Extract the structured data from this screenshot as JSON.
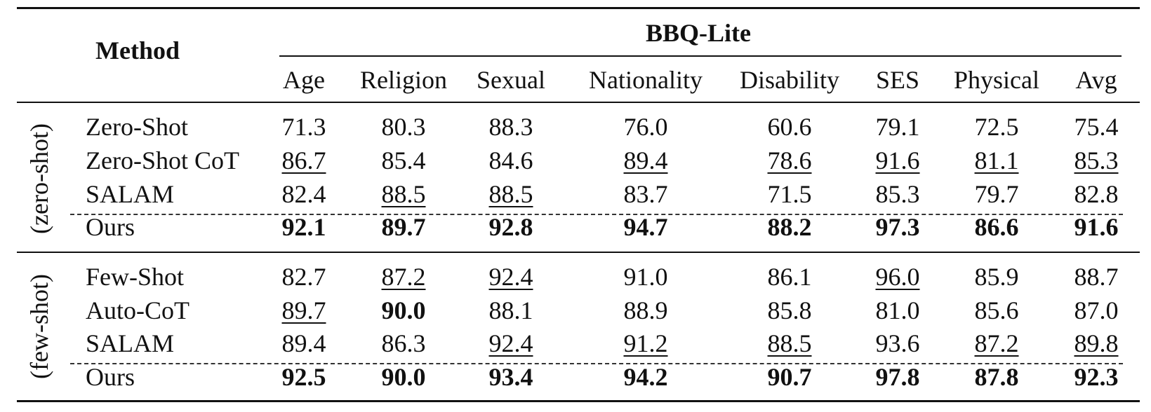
{
  "header": {
    "method_label": "Method",
    "group_label": "BBQ-Lite",
    "columns": [
      "Age",
      "Religion",
      "Sexual",
      "Nationality",
      "Disability",
      "SES",
      "Physical",
      "Avg"
    ]
  },
  "sections": [
    {
      "label": "(zero-shot)",
      "rows": [
        {
          "method": "Zero-Shot",
          "values": [
            "71.3",
            "80.3",
            "88.3",
            "76.0",
            "60.6",
            "79.1",
            "72.5",
            "75.4"
          ],
          "bold": [
            false,
            false,
            false,
            false,
            false,
            false,
            false,
            false
          ],
          "underline": [
            false,
            false,
            false,
            false,
            false,
            false,
            false,
            false
          ]
        },
        {
          "method": "Zero-Shot CoT",
          "values": [
            "86.7",
            "85.4",
            "84.6",
            "89.4",
            "78.6",
            "91.6",
            "81.1",
            "85.3"
          ],
          "bold": [
            false,
            false,
            false,
            false,
            false,
            false,
            false,
            false
          ],
          "underline": [
            true,
            false,
            false,
            true,
            true,
            true,
            true,
            true
          ]
        },
        {
          "method": "SALAM",
          "values": [
            "82.4",
            "88.5",
            "88.5",
            "83.7",
            "71.5",
            "85.3",
            "79.7",
            "82.8"
          ],
          "bold": [
            false,
            false,
            false,
            false,
            false,
            false,
            false,
            false
          ],
          "underline": [
            false,
            true,
            true,
            false,
            false,
            false,
            false,
            false
          ]
        },
        {
          "method": "Ours",
          "values": [
            "92.1",
            "89.7",
            "92.8",
            "94.7",
            "88.2",
            "97.3",
            "86.6",
            "91.6"
          ],
          "bold": [
            true,
            true,
            true,
            true,
            true,
            true,
            true,
            true
          ],
          "underline": [
            false,
            false,
            false,
            false,
            false,
            false,
            false,
            false
          ]
        }
      ]
    },
    {
      "label": "(few-shot)",
      "rows": [
        {
          "method": "Few-Shot",
          "values": [
            "82.7",
            "87.2",
            "92.4",
            "91.0",
            "86.1",
            "96.0",
            "85.9",
            "88.7"
          ],
          "bold": [
            false,
            false,
            false,
            false,
            false,
            false,
            false,
            false
          ],
          "underline": [
            false,
            true,
            true,
            false,
            false,
            true,
            false,
            false
          ]
        },
        {
          "method": "Auto-CoT",
          "values": [
            "89.7",
            "90.0",
            "88.1",
            "88.9",
            "85.8",
            "81.0",
            "85.6",
            "87.0"
          ],
          "bold": [
            false,
            true,
            false,
            false,
            false,
            false,
            false,
            false
          ],
          "underline": [
            true,
            false,
            false,
            false,
            false,
            false,
            false,
            false
          ]
        },
        {
          "method": "SALAM",
          "values": [
            "89.4",
            "86.3",
            "92.4",
            "91.2",
            "88.5",
            "93.6",
            "87.2",
            "89.8"
          ],
          "bold": [
            false,
            false,
            false,
            false,
            false,
            false,
            false,
            false
          ],
          "underline": [
            false,
            false,
            true,
            true,
            true,
            false,
            true,
            true
          ]
        },
        {
          "method": "Ours",
          "values": [
            "92.5",
            "90.0",
            "93.4",
            "94.2",
            "90.7",
            "97.8",
            "87.8",
            "92.3"
          ],
          "bold": [
            true,
            true,
            true,
            true,
            true,
            true,
            true,
            true
          ],
          "underline": [
            false,
            false,
            false,
            false,
            false,
            false,
            false,
            false
          ]
        }
      ]
    }
  ]
}
